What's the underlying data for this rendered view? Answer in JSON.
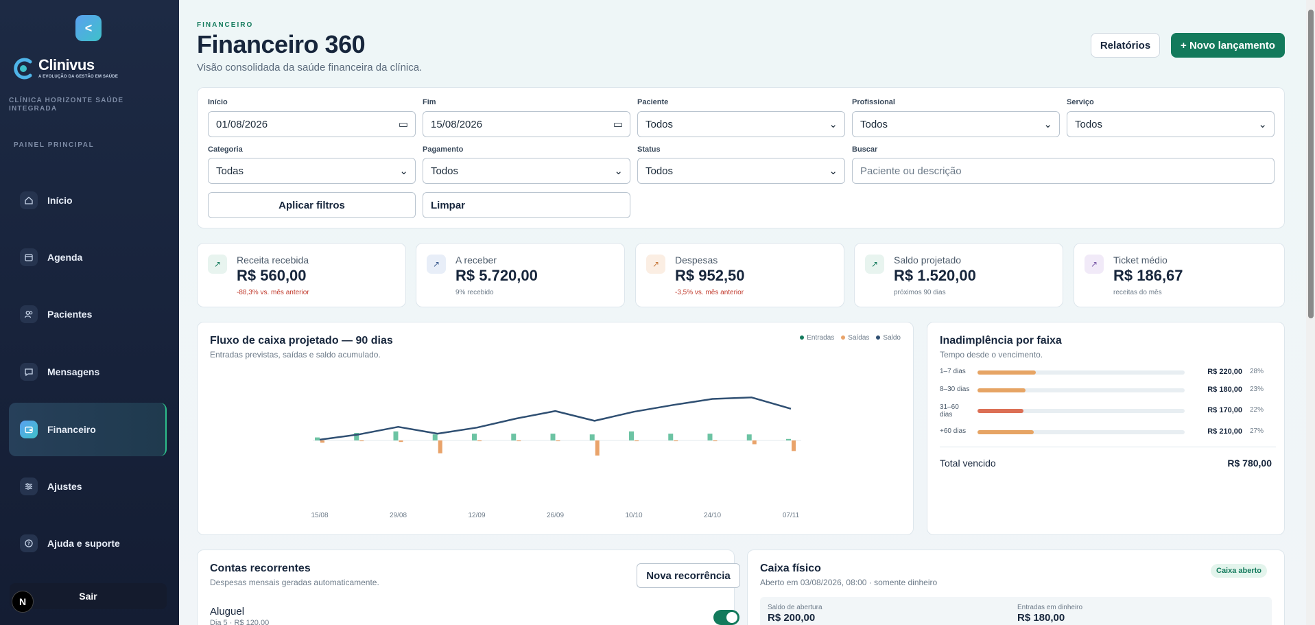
{
  "sidebar": {
    "collapse": "<",
    "brand": "Clinivus",
    "tagline": "A EVOLUÇÃO DA GESTÃO EM SAÚDE",
    "clinic": "CLÍNICA HORIZONTE SAÚDE INTEGRADA",
    "section": "PAINEL PRINCIPAL",
    "items": [
      {
        "label": "Início",
        "icon": "home-icon"
      },
      {
        "label": "Agenda",
        "icon": "calendar-icon"
      },
      {
        "label": "Pacientes",
        "icon": "users-icon"
      },
      {
        "label": "Mensagens",
        "icon": "message-icon"
      },
      {
        "label": "Financeiro",
        "icon": "wallet-icon",
        "active": true
      },
      {
        "label": "Ajustes",
        "icon": "sliders-icon"
      },
      {
        "label": "Ajuda e suporte",
        "icon": "help-icon"
      }
    ],
    "logout": "Sair",
    "badge": "N"
  },
  "header": {
    "eyebrow": "FINANCEIRO",
    "title": "Financeiro 360",
    "subtitle": "Visão consolidada da saúde financeira da clínica.",
    "reports": "Relatórios",
    "new": "+ Novo lançamento"
  },
  "filters": {
    "start_label": "Início",
    "start": "01/08/2026",
    "end_label": "Fim",
    "end": "15/08/2026",
    "patient_label": "Paciente",
    "patient": "Todos",
    "pro_label": "Profissional",
    "pro": "Todos",
    "service_label": "Serviço",
    "service": "Todos",
    "category_label": "Categoria",
    "category": "Todas",
    "payment_label": "Pagamento",
    "payment": "Todos",
    "status_label": "Status",
    "status": "Todos",
    "search_label": "Buscar",
    "search_placeholder": "Paciente ou descrição",
    "apply": "Aplicar filtros",
    "clear": "Limpar"
  },
  "kpis": [
    {
      "label": "Receita recebida",
      "value": "R$ 560,00",
      "note": "-88,3% vs. mês anterior",
      "neg": true,
      "color": "#e8f4ef",
      "fg": "#137a5c"
    },
    {
      "label": "A receber",
      "value": "R$ 5.720,00",
      "note": "9% recebido",
      "neg": false,
      "color": "#e8eef8",
      "fg": "#3b5b8f"
    },
    {
      "label": "Despesas",
      "value": "R$ 952,50",
      "note": "-3,5% vs. mês anterior",
      "neg": true,
      "color": "#fbeee3",
      "fg": "#c87a3d"
    },
    {
      "label": "Saldo projetado",
      "value": "R$ 1.520,00",
      "note": "próximos 90 dias",
      "neg": false,
      "color": "#e8f4ef",
      "fg": "#137a5c"
    },
    {
      "label": "Ticket médio",
      "value": "R$ 186,67",
      "note": "receitas do mês",
      "neg": false,
      "color": "#f1eaf8",
      "fg": "#7b5aa8"
    }
  ],
  "cashflow": {
    "title": "Fluxo de caixa projetado — 90 dias",
    "subtitle": "Entradas previstas, saídas e saldo acumulado.",
    "legend": [
      "Entradas",
      "Saídas",
      "Saldo"
    ],
    "colors": {
      "in": "#6cc3a3",
      "out": "#e9a36a",
      "bal": "#2f4f72"
    }
  },
  "chart_data": {
    "type": "bar",
    "x": [
      "15/08",
      "22/08",
      "29/08",
      "05/09",
      "12/09",
      "19/09",
      "26/09",
      "03/10",
      "10/10",
      "17/10",
      "24/10",
      "31/10",
      "07/11"
    ],
    "tick_labels": [
      "15/08",
      "29/08",
      "12/09",
      "26/09",
      "10/10",
      "24/10",
      "07/11"
    ],
    "series": [
      {
        "name": "Entradas",
        "type": "bar",
        "values": [
          4,
          10,
          12,
          8,
          9,
          9,
          9,
          8,
          12,
          9,
          9,
          8,
          2
        ]
      },
      {
        "name": "Saídas",
        "type": "bar",
        "values": [
          -3,
          -1,
          -2,
          -17,
          -1,
          -1,
          -1,
          -20,
          -1,
          -1,
          -1,
          -5,
          -14
        ]
      },
      {
        "name": "Saldo",
        "type": "line",
        "values": [
          1,
          8,
          18,
          9,
          17,
          29,
          39,
          26,
          38,
          47,
          55,
          57,
          42
        ]
      }
    ]
  },
  "aging": {
    "title": "Inadimplência por faixa",
    "subtitle": "Tempo desde o vencimento.",
    "rows": [
      {
        "label": "1–7 dias",
        "value": "R$ 220,00",
        "pct": "28%",
        "frac": 0.28,
        "color": "#e6a464"
      },
      {
        "label": "8–30 dias",
        "value": "R$ 180,00",
        "pct": "23%",
        "frac": 0.23,
        "color": "#e6a464"
      },
      {
        "label": "31–60 dias",
        "value": "R$ 170,00",
        "pct": "22%",
        "frac": 0.22,
        "color": "#dc6f55"
      },
      {
        "label": "+60 dias",
        "value": "R$ 210,00",
        "pct": "27%",
        "frac": 0.27,
        "color": "#e6a464"
      }
    ],
    "total_label": "Total vencido",
    "total": "R$ 780,00"
  },
  "recurring": {
    "title": "Contas recorrentes",
    "subtitle": "Despesas mensais geradas automaticamente.",
    "button": "Nova recorrência",
    "item_name": "Aluguel",
    "item_meta": "Dia 5 · R$ 120,00"
  },
  "cash": {
    "title": "Caixa físico",
    "subtitle": "Aberto em 03/08/2026, 08:00 · somente dinheiro",
    "badge": "Caixa aberto",
    "opening_label": "Saldo de abertura",
    "opening": "R$ 200,00",
    "cash_in_label": "Entradas em dinheiro",
    "cash_in": "R$ 180,00"
  }
}
